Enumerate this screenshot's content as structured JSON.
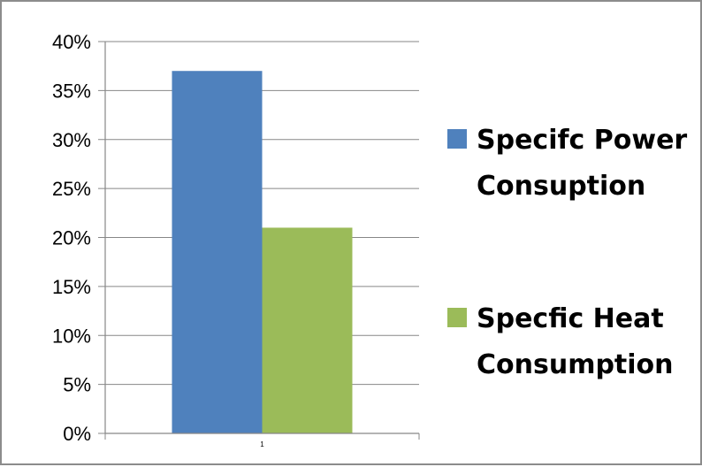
{
  "chart_data": {
    "type": "bar",
    "categories": [
      "1"
    ],
    "series": [
      {
        "name": "Specifc Power Consuption",
        "values": [
          37
        ],
        "color": "#4F81BD"
      },
      {
        "name": "Specfic Heat Consumption",
        "values": [
          21
        ],
        "color": "#9BBB59"
      }
    ],
    "ylim": [
      0,
      40
    ],
    "yticks": [
      "0%",
      "5%",
      "10%",
      "15%",
      "20%",
      "25%",
      "30%",
      "35%",
      "40%"
    ],
    "legend_position": "right",
    "grid": true,
    "legend": [
      {
        "lines": [
          "Specifc Power",
          "Consuption"
        ],
        "color": "#4F81BD"
      },
      {
        "lines": [
          "Specfic Heat",
          "Consumption"
        ],
        "color": "#9BBB59"
      }
    ]
  }
}
